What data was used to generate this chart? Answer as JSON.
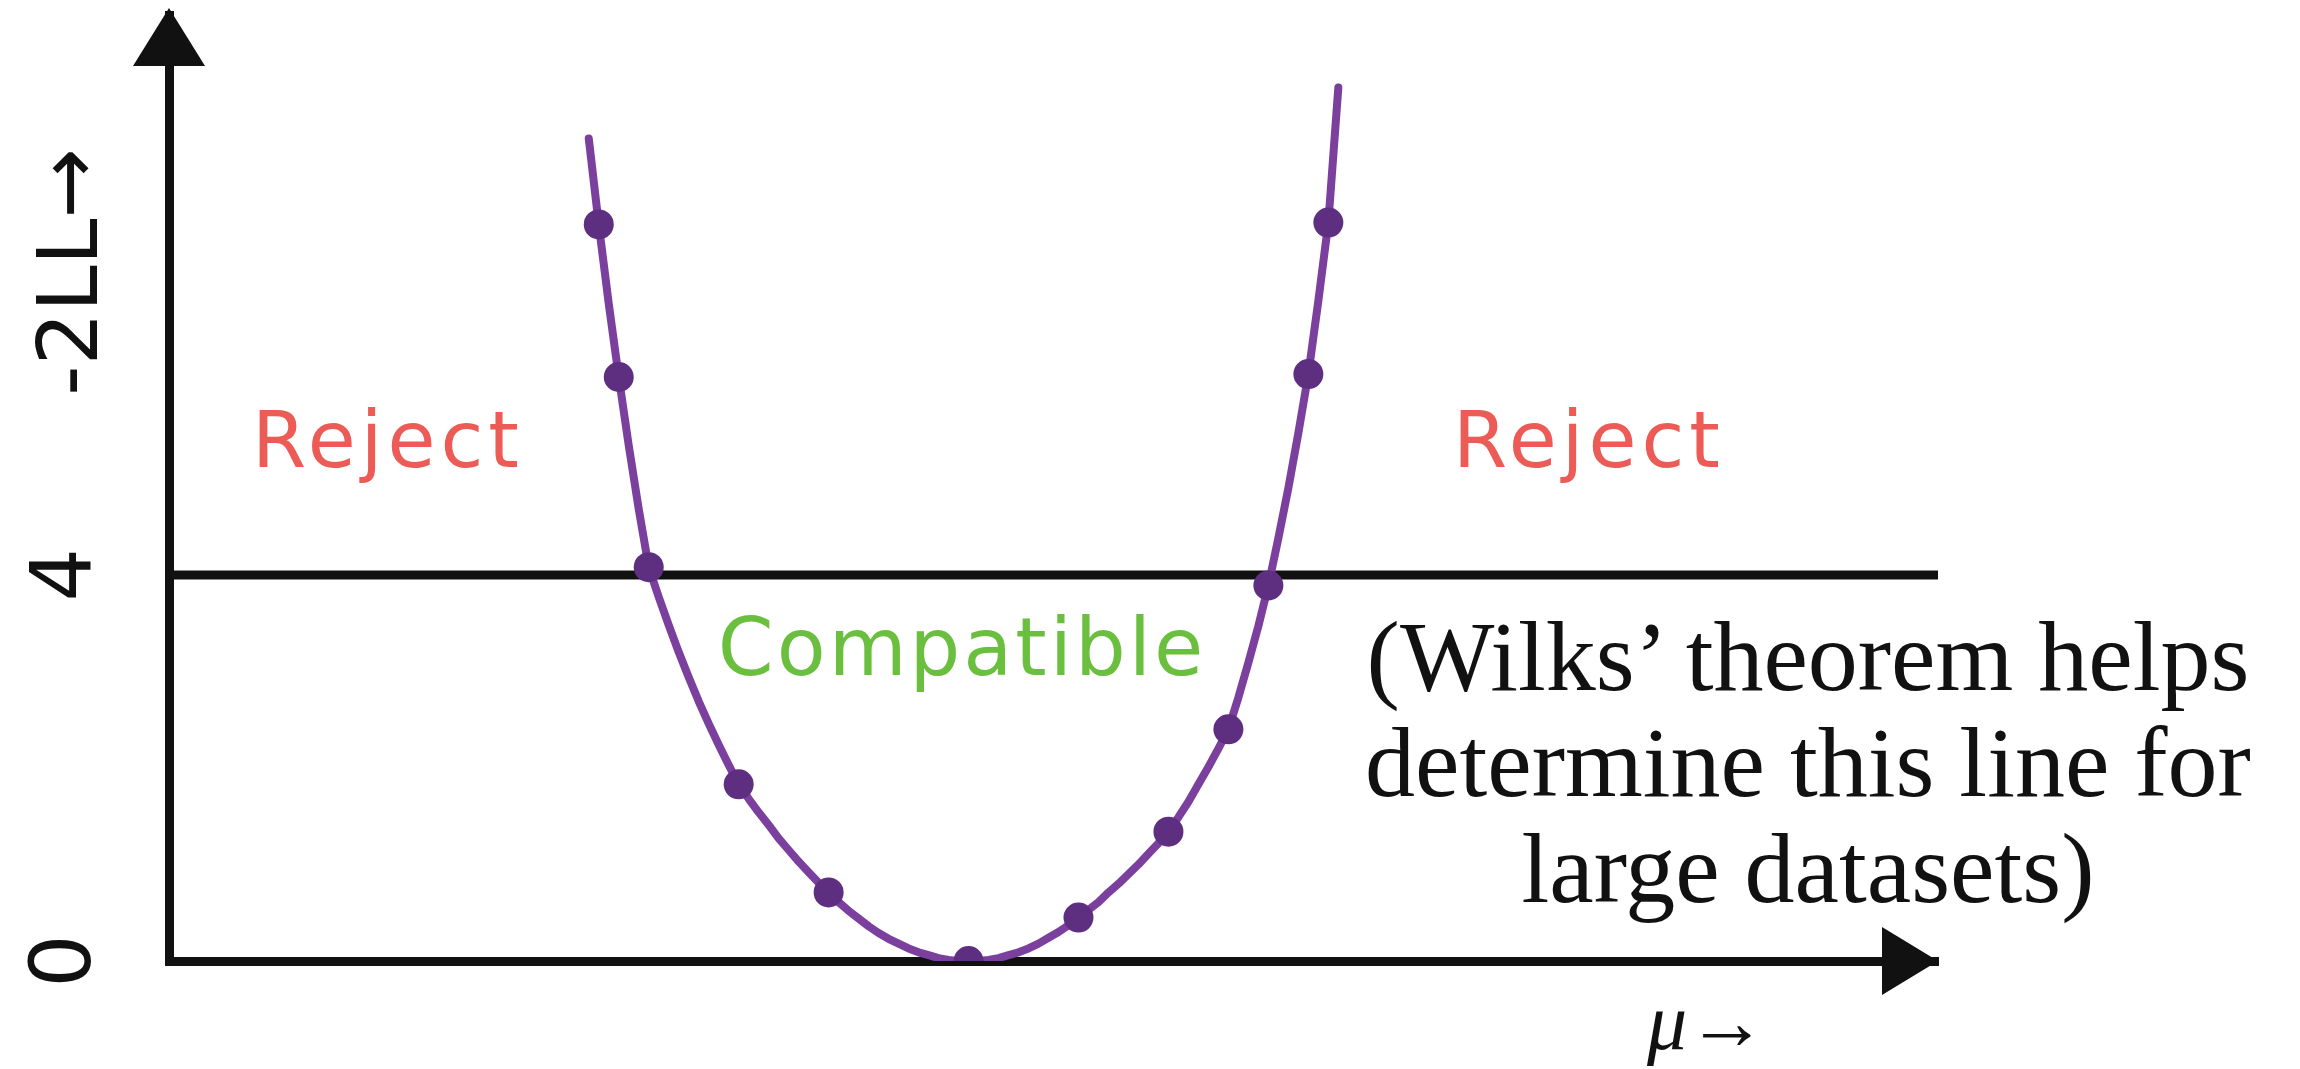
{
  "chart_data": {
    "type": "line",
    "xlabel": "μ→",
    "ylabel": "-2LL→",
    "annotations": [
      "Reject",
      "Reject",
      "Compatible",
      "(Wilks’ theorem helps determine this line for large datasets)"
    ],
    "categories": [
      null,
      null,
      null,
      null,
      null,
      null,
      null,
      null,
      null,
      null,
      null,
      null,
      null,
      null,
      null,
      null,
      null,
      null,
      null,
      null,
      null,
      null,
      null,
      null,
      null,
      null,
      null,
      null,
      null,
      null,
      null,
      null,
      null,
      null,
      null,
      null,
      null,
      null,
      null,
      null,
      null,
      null,
      null,
      null,
      null,
      null,
      null,
      null,
      null,
      null,
      null,
      null,
      null,
      null,
      null,
      null,
      null,
      null,
      null,
      null,
      null,
      null,
      null,
      null,
      null,
      null,
      null,
      null,
      null,
      null,
      null,
      null,
      null,
      null,
      null,
      null,
      null,
      null,
      null,
      null,
      null,
      null,
      null,
      null,
      null,
      null,
      null,
      null,
      null,
      null,
      null,
      null,
      null,
      null,
      null,
      null,
      null,
      null,
      null,
      null,
      null,
      null,
      null,
      null,
      null,
      null,
      null,
      null,
      null,
      null,
      null,
      null,
      null,
      null,
      null,
      null,
      null,
      null,
      null,
      null,
      null,
      null,
      null,
      null,
      null,
      null,
      null,
      null,
      null,
      null,
      null,
      null,
      null,
      null,
      null,
      null,
      null,
      null,
      null,
      null,
      null,
      null,
      null,
      null,
      null,
      null,
      null,
      null,
      null,
      null,
      null,
      null,
      null,
      null,
      null,
      null,
      null,
      null,
      null,
      null,
      null,
      null,
      null,
      null,
      null,
      null,
      null,
      null,
      null,
      null,
      null,
      null,
      null,
      null,
      null,
      null,
      null,
      null
    ],
    "series": [
      {
        "type": "line",
        "color": "#7b3f9e",
        "marker": "none",
        "values": [
          null,
          null,
          null,
          null,
          null,
          null,
          null,
          null,
          null,
          null,
          null,
          null,
          null,
          null,
          null,
          null,
          null,
          null,
          null,
          null,
          null,
          null,
          null,
          null,
          null,
          null,
          null,
          null,
          null,
          null,
          null,
          null,
          null,
          null,
          null,
          null,
          null,
          null,
          null,
          null,
          null,
          null,
          8.52,
          7.63,
          6.81,
          6.05,
          5.34,
          4.68,
          4.08,
          3.77,
          3.48,
          3.2,
          2.94,
          2.69,
          2.46,
          2.24,
          2.03,
          1.83,
          1.68,
          1.54,
          1.41,
          1.27,
          1.15,
          1.03,
          0.92,
          0.81,
          0.71,
          0.61,
          0.52,
          0.44,
          0.36,
          0.29,
          0.23,
          0.18,
          0.13,
          0.09,
          0.06,
          0.03,
          0.01,
          0,
          0,
          0,
          0.01,
          0.03,
          0.06,
          0.09,
          0.13,
          0.18,
          0.24,
          0.3,
          0.37,
          0.45,
          0.53,
          0.61,
          0.71,
          0.8,
          0.9,
          1,
          1.11,
          1.22,
          1.34,
          1.49,
          1.65,
          1.83,
          2.01,
          2.2,
          2.4,
          2.73,
          3.09,
          3.47,
          3.89,
          4.38,
          4.9,
          5.47,
          6.08,
          6.84,
          7.65,
          9.05,
          null,
          null,
          null,
          null,
          null,
          null,
          null,
          null,
          null,
          null,
          null,
          null,
          null,
          null,
          null,
          null,
          null,
          null,
          null,
          null,
          null,
          null,
          null,
          null,
          null,
          null,
          null,
          null,
          null,
          null,
          null,
          null,
          null,
          null,
          null,
          null,
          null,
          null,
          null,
          null,
          null,
          null,
          null,
          null,
          null,
          null,
          null,
          null,
          null,
          null,
          null,
          null,
          null,
          null,
          null,
          null,
          null,
          null,
          null,
          null
        ]
      },
      {
        "type": "scatter",
        "color": "#5e2f80",
        "marker": "circle",
        "values": [
          null,
          null,
          null,
          null,
          null,
          null,
          null,
          null,
          null,
          null,
          null,
          null,
          null,
          null,
          null,
          null,
          null,
          null,
          null,
          null,
          null,
          null,
          null,
          null,
          null,
          null,
          null,
          null,
          null,
          null,
          null,
          null,
          null,
          null,
          null,
          null,
          null,
          null,
          null,
          null,
          null,
          null,
          null,
          7.63,
          null,
          6.05,
          null,
          null,
          4.08,
          null,
          null,
          null,
          null,
          null,
          null,
          null,
          null,
          1.83,
          null,
          null,
          null,
          null,
          null,
          null,
          null,
          null,
          0.71,
          null,
          null,
          null,
          null,
          null,
          null,
          null,
          null,
          null,
          null,
          null,
          null,
          null,
          0,
          null,
          null,
          null,
          null,
          null,
          null,
          null,
          null,
          null,
          null,
          0.45,
          null,
          null,
          null,
          null,
          null,
          null,
          null,
          null,
          1.34,
          null,
          null,
          null,
          null,
          null,
          2.4,
          null,
          null,
          null,
          3.89,
          null,
          null,
          null,
          6.08,
          null,
          7.65,
          null,
          null,
          null,
          null,
          null,
          null,
          null,
          null,
          null,
          null,
          null,
          null,
          null,
          null,
          null,
          null,
          null,
          null,
          null,
          null,
          null,
          null,
          null,
          null,
          null,
          null,
          null,
          null,
          null,
          null,
          null,
          null,
          null,
          null,
          null,
          null,
          null,
          null,
          null,
          null,
          null,
          null,
          null,
          null,
          null,
          null,
          null,
          null,
          null,
          null,
          null,
          null,
          null,
          null,
          null,
          null,
          null,
          null,
          null,
          null,
          null
        ]
      }
    ],
    "ylim": [
      0,
      9.8
    ],
    "yticks": [
      0,
      4
    ],
    "tick_labels": "y",
    "ref_lines": [
      {
        "axis": "y",
        "value": 4,
        "color": "#111111"
      }
    ]
  }
}
